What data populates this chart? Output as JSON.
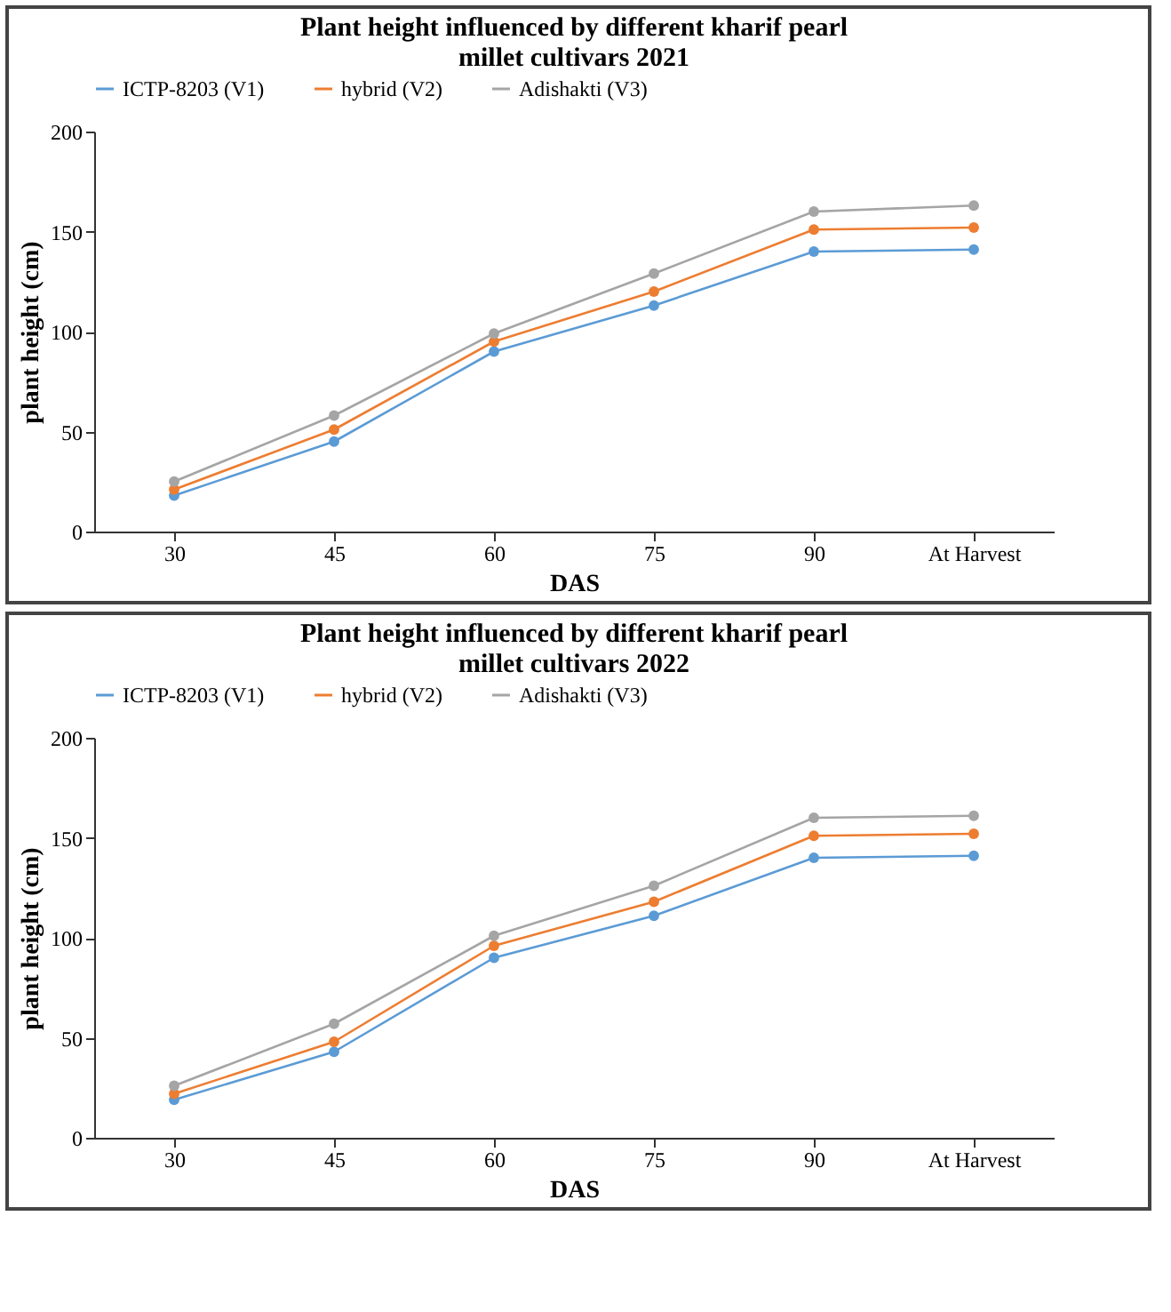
{
  "chart_data": [
    {
      "type": "line",
      "title": "Plant height influenced by different kharif pearl millet cultivars 2021",
      "xlabel": "DAS",
      "ylabel": "plant height (cm)",
      "categories": [
        "30",
        "45",
        "60",
        "75",
        "90",
        "At Harvest"
      ],
      "ylim": [
        0,
        200
      ],
      "yticks": [
        0,
        50,
        100,
        150,
        200
      ],
      "legend": "top",
      "marker": "circle",
      "series": [
        {
          "name": "ICTP-8203 (V1)",
          "color": "#5b9bd5",
          "values": [
            18,
            45,
            90,
            113,
            140,
            141
          ]
        },
        {
          "name": "hybrid (V2)",
          "color": "#ed7d31",
          "values": [
            21,
            51,
            95,
            120,
            151,
            152
          ]
        },
        {
          "name": "Adishakti (V3)",
          "color": "#a5a5a5",
          "values": [
            25,
            58,
            99,
            129,
            160,
            163
          ]
        }
      ]
    },
    {
      "type": "line",
      "title": "Plant height influenced by different kharif pearl millet cultivars 2022",
      "xlabel": "DAS",
      "ylabel": "plant height (cm)",
      "categories": [
        "30",
        "45",
        "60",
        "75",
        "90",
        "At Harvest"
      ],
      "ylim": [
        0,
        200
      ],
      "yticks": [
        0,
        50,
        100,
        150,
        200
      ],
      "legend": "top",
      "marker": "circle",
      "series": [
        {
          "name": "ICTP-8203 (V1)",
          "color": "#5b9bd5",
          "values": [
            19,
            43,
            90,
            111,
            140,
            141
          ]
        },
        {
          "name": "hybrid (V2)",
          "color": "#ed7d31",
          "values": [
            22,
            48,
            96,
            118,
            151,
            152
          ]
        },
        {
          "name": "Adishakti (V3)",
          "color": "#a5a5a5",
          "values": [
            26,
            57,
            101,
            126,
            160,
            161
          ]
        }
      ]
    }
  ]
}
